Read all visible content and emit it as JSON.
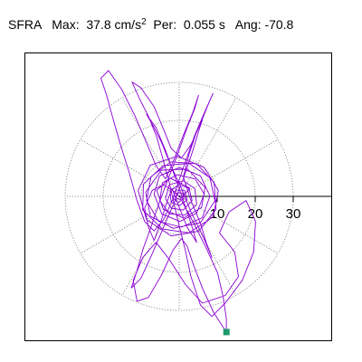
{
  "header": {
    "station": "SFRA",
    "max_label": "Max:",
    "max_value": "37.8",
    "max_unit": "cm/s",
    "max_unit_exponent": "2",
    "period_label": "Per:",
    "period_value": "0.055 s",
    "angle_label": "Ang:",
    "angle_value": "-70.8"
  },
  "chart_data": {
    "type": "line",
    "plot": "polar particle-motion orbit",
    "radial_tick_labels": [
      "10",
      "20",
      "30"
    ],
    "radial_ticks": [
      10,
      20,
      30
    ],
    "radial_rings": [
      10,
      20,
      30
    ],
    "radial_max": 37.8,
    "spokes_degrees": [
      0,
      30,
      60,
      90,
      120,
      150,
      180,
      210,
      240,
      270,
      300,
      330
    ],
    "grid": true,
    "colors": {
      "trace": "#8a00d4",
      "marker": "#1a9a6a",
      "grid": "#7a7a7a",
      "axis": "#000000"
    },
    "max_marker": {
      "angle_deg": -70.8,
      "amplitude": 37.8
    },
    "trace": [
      [
        0.6,
        -0.4
      ],
      [
        2.8,
        2.2
      ],
      [
        -2.4,
        4.8
      ],
      [
        -5.9,
        1.6
      ],
      [
        -4.2,
        -3.4
      ],
      [
        1.2,
        -5.7
      ],
      [
        5.9,
        -2.9
      ],
      [
        6.8,
        2.4
      ],
      [
        2.2,
        7.2
      ],
      [
        -4.7,
        6.9
      ],
      [
        -8.8,
        1.1
      ],
      [
        -7.6,
        -5.2
      ],
      [
        -1.6,
        -8.4
      ],
      [
        5.6,
        -6.9
      ],
      [
        9.4,
        -1.2
      ],
      [
        8.1,
        4.9
      ],
      [
        2.6,
        8.7
      ],
      [
        -4.2,
        8.1
      ],
      [
        -9.4,
        3.2
      ],
      [
        -9.6,
        -3.6
      ],
      [
        -4.4,
        -8.6
      ],
      [
        2.6,
        -9.6
      ],
      [
        8.9,
        -5.4
      ],
      [
        10.3,
        1.6
      ],
      [
        6.6,
        7.6
      ],
      [
        -0.6,
        10.6
      ],
      [
        -7.6,
        8.2
      ],
      [
        -10.8,
        1.6
      ],
      [
        -8.6,
        -6.1
      ],
      [
        -2.1,
        -10.4
      ],
      [
        5.1,
        -9.2
      ],
      [
        9.7,
        -3.4
      ],
      [
        9.2,
        3.6
      ],
      [
        4.6,
        8.6
      ],
      [
        -2.2,
        9.1
      ],
      [
        -7.4,
        5.2
      ],
      [
        -8.6,
        -1.1
      ],
      [
        -5.4,
        -6.6
      ],
      [
        0.6,
        -8.1
      ],
      [
        6.1,
        -5.6
      ],
      [
        8.1,
        0.1
      ],
      [
        5.6,
        5.4
      ],
      [
        0.1,
        7.6
      ],
      [
        -5.2,
        5.4
      ],
      [
        -6.6,
        0.6
      ],
      [
        -4.6,
        -4.6
      ],
      [
        0.2,
        -6.6
      ],
      [
        4.6,
        -4.4
      ],
      [
        6.6,
        0.6
      ],
      [
        4.2,
        4.6
      ],
      [
        -0.6,
        5.7
      ],
      [
        -4.4,
        3.6
      ],
      [
        -5.1,
        -1.1
      ],
      [
        -2.6,
        -4.6
      ],
      [
        1.6,
        -4.9
      ],
      [
        4.6,
        -2.1
      ],
      [
        4.1,
        2.1
      ],
      [
        1.1,
        4.1
      ],
      [
        -2.6,
        3.1
      ],
      [
        -3.6,
        -0.6
      ],
      [
        -2.1,
        -3.1
      ],
      [
        1.1,
        -3.6
      ],
      [
        3.4,
        -1.1
      ],
      [
        2.6,
        2.1
      ],
      [
        -0.1,
        3.1
      ],
      [
        -2.4,
        1.4
      ],
      [
        -2.1,
        -1.6
      ],
      [
        0.1,
        -2.4
      ],
      [
        2.1,
        -0.9
      ],
      [
        1.4,
        1.6
      ],
      [
        -0.9,
        1.7
      ],
      [
        -1.6,
        -0.4
      ],
      [
        -0.3,
        -1.6
      ],
      [
        1.2,
        -0.6
      ],
      [
        0.9,
        0.9
      ],
      [
        -0.6,
        0.9
      ],
      [
        -0.9,
        -0.4
      ],
      [
        0.6,
        -0.9
      ],
      [
        1.6,
        -2.9
      ],
      [
        4.1,
        -7.6
      ],
      [
        7.1,
        -13.6
      ],
      [
        10.1,
        -20.1
      ],
      [
        11.6,
        -26.6
      ],
      [
        12.4,
        -32.1
      ],
      [
        12.4,
        -35.7
      ],
      [
        9.1,
        -30.6
      ],
      [
        6.1,
        -24.1
      ],
      [
        3.6,
        -17.6
      ],
      [
        2.1,
        -13.1
      ],
      [
        0.6,
        -11.1
      ],
      [
        -1.6,
        -14.1
      ],
      [
        -4.6,
        -20.6
      ],
      [
        -8.1,
        -26.6
      ],
      [
        -11.1,
        -27.6
      ],
      [
        -12.1,
        -22.1
      ],
      [
        -9.6,
        -16.1
      ],
      [
        -6.1,
        -12.1
      ],
      [
        -2.6,
        -16.6
      ],
      [
        1.6,
        -23.1
      ],
      [
        6.1,
        -28.1
      ],
      [
        12.1,
        -26.1
      ],
      [
        15.6,
        -21.1
      ],
      [
        14.6,
        -14.6
      ],
      [
        10.6,
        -9.6
      ],
      [
        13.1,
        -4.1
      ],
      [
        17.6,
        -1.1
      ],
      [
        20.1,
        -6.6
      ],
      [
        19.6,
        -14.6
      ],
      [
        16.6,
        -22.1
      ],
      [
        12.1,
        -28.1
      ],
      [
        8.6,
        -31.6
      ],
      [
        5.6,
        -28.6
      ],
      [
        3.1,
        -21.1
      ],
      [
        1.6,
        -14.1
      ],
      [
        -0.4,
        -6.1
      ],
      [
        -2.9,
        4.9
      ],
      [
        -5.9,
        15.6
      ],
      [
        -8.1,
        21.1
      ],
      [
        -10.4,
        25.6
      ],
      [
        -12.4,
        30.1
      ],
      [
        -10.1,
        28.6
      ],
      [
        -6.6,
        23.6
      ],
      [
        -4.1,
        17.6
      ],
      [
        -2.1,
        12.6
      ],
      [
        0.6,
        10.1
      ],
      [
        3.1,
        13.6
      ],
      [
        5.6,
        19.1
      ],
      [
        7.6,
        24.1
      ],
      [
        8.9,
        27.1
      ],
      [
        7.1,
        23.1
      ],
      [
        4.1,
        16.1
      ],
      [
        1.1,
        7.6
      ],
      [
        -1.6,
        -0.6
      ],
      [
        -4.1,
        -6.1
      ],
      [
        -6.6,
        -9.1
      ],
      [
        -9.1,
        -6.6
      ],
      [
        -11.1,
        -1.1
      ],
      [
        -13.1,
        6.1
      ],
      [
        -15.6,
        14.1
      ],
      [
        -17.6,
        21.1
      ],
      [
        -19.1,
        26.6
      ],
      [
        -20.6,
        31.1
      ],
      [
        -18.6,
        33.1
      ],
      [
        -15.1,
        28.1
      ],
      [
        -11.6,
        21.1
      ],
      [
        -8.6,
        14.1
      ],
      [
        -6.1,
        8.1
      ],
      [
        -3.6,
        4.6
      ],
      [
        -1.6,
        9.1
      ],
      [
        1.1,
        16.1
      ],
      [
        3.6,
        22.1
      ],
      [
        5.1,
        26.6
      ],
      [
        4.1,
        23.1
      ],
      [
        2.1,
        18.1
      ],
      [
        -0.4,
        11.1
      ],
      [
        -3.1,
        4.1
      ],
      [
        -5.6,
        -2.6
      ],
      [
        -7.6,
        -8.6
      ],
      [
        -9.6,
        -14.1
      ],
      [
        -11.1,
        -19.6
      ],
      [
        -12.6,
        -24.1
      ],
      [
        -10.1,
        -21.6
      ],
      [
        -7.1,
        -15.1
      ],
      [
        -4.1,
        -8.1
      ],
      [
        -1.1,
        -1.1
      ],
      [
        1.6,
        6.1
      ],
      [
        3.6,
        12.1
      ],
      [
        5.1,
        17.1
      ],
      [
        6.1,
        20.1
      ],
      [
        4.6,
        17.1
      ],
      [
        2.6,
        11.1
      ],
      [
        1.1,
        5.1
      ],
      [
        3.1,
        -1.1
      ],
      [
        5.6,
        -7.1
      ],
      [
        7.1,
        -12.1
      ],
      [
        8.6,
        -16.1
      ],
      [
        6.1,
        -10.1
      ],
      [
        3.1,
        -4.1
      ],
      [
        0.6,
        2.1
      ],
      [
        -2.4,
        8.6
      ],
      [
        -4.6,
        14.1
      ],
      [
        -6.6,
        18.1
      ],
      [
        -8.6,
        21.6
      ],
      [
        -6.1,
        18.1
      ],
      [
        -3.6,
        12.1
      ],
      [
        -1.1,
        5.1
      ],
      [
        1.1,
        -1.1
      ],
      [
        3.1,
        -7.1
      ],
      [
        4.6,
        -12.1
      ],
      [
        2.1,
        -8.1
      ],
      [
        0.1,
        -3.1
      ],
      [
        -1.9,
        2.1
      ],
      [
        -3.6,
        -2.6
      ],
      [
        -5.1,
        -7.6
      ],
      [
        -6.6,
        -11.6
      ],
      [
        -8.1,
        -8.1
      ],
      [
        -9.1,
        -3.1
      ],
      [
        -7.1,
        1.6
      ],
      [
        -4.1,
        3.1
      ],
      [
        -1.1,
        1.1
      ],
      [
        0.6,
        -0.6
      ]
    ]
  }
}
